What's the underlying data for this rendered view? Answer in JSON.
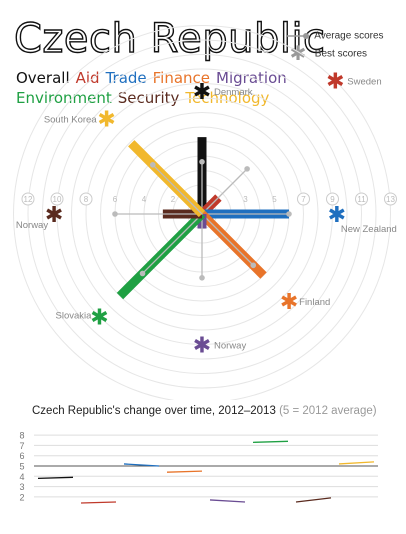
{
  "title": "Czech Republic",
  "categories_row1": [
    {
      "label": "Overall",
      "color": "#111111"
    },
    {
      "label": "Aid",
      "color": "#c0392b"
    },
    {
      "label": "Trade",
      "color": "#1f6fbf"
    },
    {
      "label": "Finance",
      "color": "#e8742a"
    },
    {
      "label": "Migration",
      "color": "#6a4c93"
    }
  ],
  "categories_row2": [
    {
      "label": "Environment",
      "color": "#1fa043"
    },
    {
      "label": "Security",
      "color": "#5a2a1e"
    },
    {
      "label": "Technology",
      "color": "#f1b82d"
    }
  ],
  "legend": {
    "average": "Average scores",
    "best": "Best scores"
  },
  "bottom_title_main": "Czech Republic's change over time, 2012–2013",
  "bottom_title_paren": "(5 = 2012 average)",
  "chart_data": [
    {
      "type": "radial",
      "ring_labels": [
        "1",
        "3",
        "5",
        "7",
        "9",
        "11",
        "13"
      ],
      "ring_labels_even": [
        "2",
        "4",
        "6",
        "8",
        "10",
        "12"
      ],
      "series": [
        {
          "name": "Overall",
          "color": "#111111",
          "angle_deg": 90,
          "value": 5.3,
          "average": 3.6,
          "best": 8.5,
          "best_country": "Denmark"
        },
        {
          "name": "Aid",
          "color": "#c0392b",
          "angle_deg": 45,
          "value": 1.6,
          "average": 4.4,
          "best": 13.0,
          "best_country": "Sweden"
        },
        {
          "name": "Trade",
          "color": "#1f6fbf",
          "angle_deg": 0,
          "value": 6.0,
          "average": 6.0,
          "best": 9.3,
          "best_country": "New Zealand"
        },
        {
          "name": "Finance",
          "color": "#e8742a",
          "angle_deg": -45,
          "value": 6.0,
          "average": 5.0,
          "best": 8.5,
          "best_country": "Finland"
        },
        {
          "name": "Migration",
          "color": "#6a4c93",
          "angle_deg": -90,
          "value": 1.0,
          "average": 4.4,
          "best": 9.0,
          "best_country": "Norway"
        },
        {
          "name": "Environment",
          "color": "#1fa043",
          "angle_deg": -135,
          "value": 8.0,
          "average": 5.8,
          "best": 10.0,
          "best_country": "Slovakia"
        },
        {
          "name": "Security",
          "color": "#5a2a1e",
          "angle_deg": 180,
          "value": 2.7,
          "average": 6.0,
          "best": 10.2,
          "best_country": "Norway"
        },
        {
          "name": "Technology",
          "color": "#f1b82d",
          "angle_deg": 135,
          "value": 6.9,
          "average": 4.8,
          "best": 9.3,
          "best_country": "South Korea"
        }
      ]
    },
    {
      "type": "line",
      "y_ticks": [
        "2",
        "3",
        "4",
        "5",
        "6",
        "7",
        "8"
      ],
      "ylim": [
        1.5,
        8.5
      ],
      "series": [
        {
          "name": "Overall",
          "color": "#111111",
          "values": [
            3.8,
            3.9
          ]
        },
        {
          "name": "Aid",
          "color": "#c0392b",
          "values": [
            1.4,
            1.5
          ]
        },
        {
          "name": "Trade",
          "color": "#1f6fbf",
          "values": [
            5.2,
            5.0
          ]
        },
        {
          "name": "Finance",
          "color": "#e8742a",
          "values": [
            4.4,
            4.5
          ]
        },
        {
          "name": "Migration",
          "color": "#6a4c93",
          "values": [
            1.7,
            1.5
          ]
        },
        {
          "name": "Environment",
          "color": "#1fa043",
          "values": [
            7.3,
            7.4
          ]
        },
        {
          "name": "Security",
          "color": "#5a2a1e",
          "values": [
            1.5,
            1.9
          ]
        },
        {
          "name": "Technology",
          "color": "#f1b82d",
          "values": [
            5.2,
            5.4
          ]
        }
      ]
    }
  ]
}
